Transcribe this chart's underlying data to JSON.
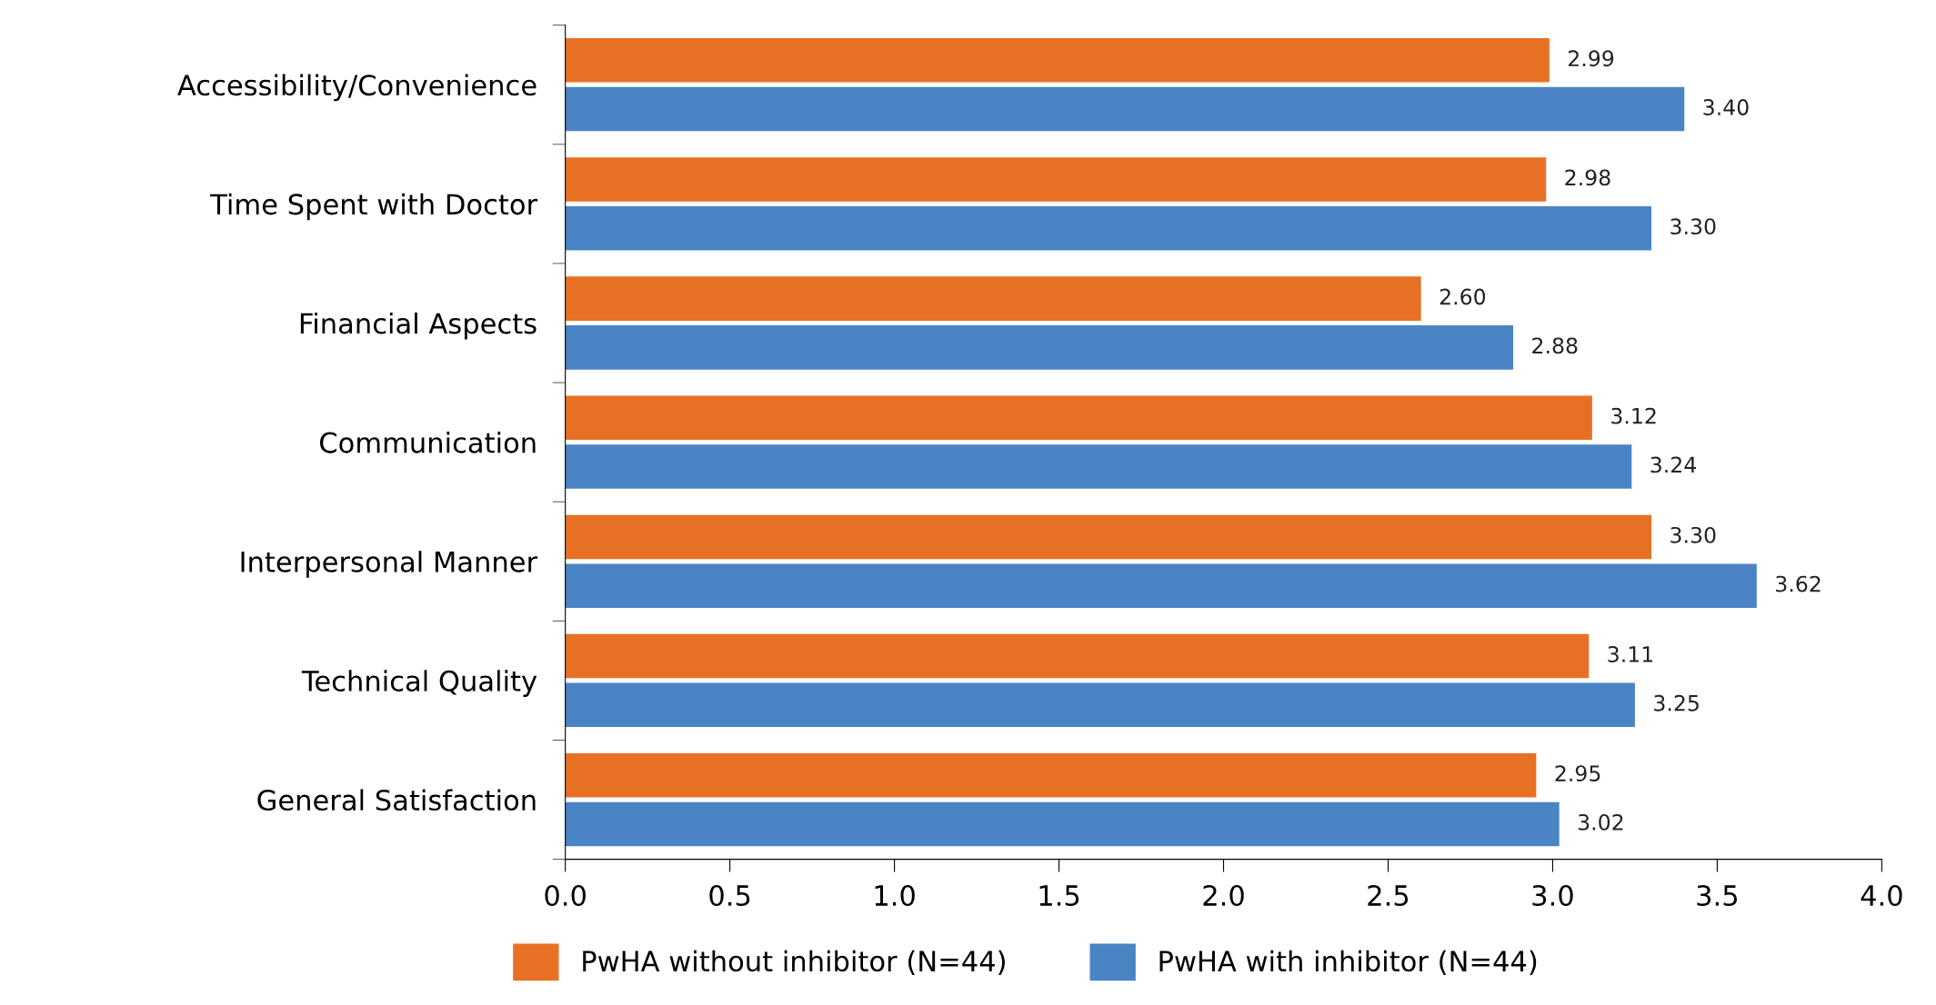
{
  "chart_data": {
    "type": "bar",
    "orientation": "horizontal",
    "categories": [
      "Accessibility/Convenience",
      "Time Spent with Doctor",
      "Financial Aspects",
      "Communication",
      "Interpersonal Manner",
      "Technical Quality",
      "General Satisfaction"
    ],
    "series": [
      {
        "name": "PwHA without inhibitor (N=44)",
        "color": "#e87025",
        "values": [
          2.99,
          2.98,
          2.6,
          3.12,
          3.3,
          3.11,
          2.95
        ],
        "value_labels": [
          "2.99",
          "2.98",
          "2.60",
          "3.12",
          "3.30",
          "3.11",
          "2.95"
        ]
      },
      {
        "name": "PwHA with inhibitor (N=44)",
        "color": "#4a84c5",
        "values": [
          3.4,
          3.3,
          2.88,
          3.24,
          3.62,
          3.25,
          3.02
        ],
        "value_labels": [
          "3.40",
          "3.30",
          "2.88",
          "3.24",
          "3.62",
          "3.25",
          "3.02"
        ]
      }
    ],
    "xlim": [
      0,
      4
    ],
    "xticks": [
      {
        "value": 0,
        "label": "0.0"
      },
      {
        "value": 0.5,
        "label": "0.5"
      },
      {
        "value": 1,
        "label": "1.0"
      },
      {
        "value": 1.5,
        "label": "1.5"
      },
      {
        "value": 2,
        "label": "2.0"
      },
      {
        "value": 2.5,
        "label": "2.5"
      },
      {
        "value": 3,
        "label": "3.0"
      },
      {
        "value": 3.5,
        "label": "3.5"
      },
      {
        "value": 4,
        "label": "4.0"
      }
    ],
    "grid": false,
    "legend": "bottom"
  }
}
